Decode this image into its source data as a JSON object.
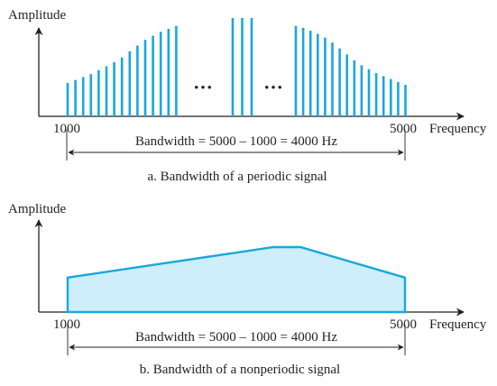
{
  "colors": {
    "accent": "#1aa7dd",
    "fill": "#cdeefa",
    "ink": "#231f20"
  },
  "panel_a": {
    "y_label": "Amplitude",
    "x_label": "Frequency",
    "tick_start": "1000",
    "tick_end": "5000",
    "bandwidth_label": "Bandwidth = 5000 – 1000 = 4000 Hz",
    "caption": "a. Bandwidth of a periodic signal",
    "ellipsis_left": "•••",
    "ellipsis_right": "•••",
    "spectral_lines": {
      "left_group_rel": [
        0.34,
        0.37,
        0.4,
        0.43,
        0.47,
        0.51,
        0.55,
        0.6,
        0.66,
        0.72,
        0.78,
        0.82,
        0.86,
        0.89,
        0.92
      ],
      "middle_group_rel": [
        1.0,
        1.0,
        1.0
      ],
      "right_group_rel": [
        0.92,
        0.9,
        0.87,
        0.84,
        0.8,
        0.75,
        0.69,
        0.63,
        0.57,
        0.52,
        0.48,
        0.44,
        0.41,
        0.38,
        0.35,
        0.32
      ]
    }
  },
  "panel_b": {
    "y_label": "Amplitude",
    "x_label": "Frequency",
    "tick_start": "1000",
    "tick_end": "5000",
    "bandwidth_label": "Bandwidth = 5000 – 1000 = 4000 Hz",
    "caption": "b. Bandwidth of a nonperiodic signal",
    "envelope": [
      {
        "freq": 1000,
        "amp_rel": 0.53
      },
      {
        "freq": 3440,
        "amp_rel": 1.0
      },
      {
        "freq": 3760,
        "amp_rel": 1.0
      },
      {
        "freq": 5000,
        "amp_rel": 0.53
      }
    ]
  }
}
